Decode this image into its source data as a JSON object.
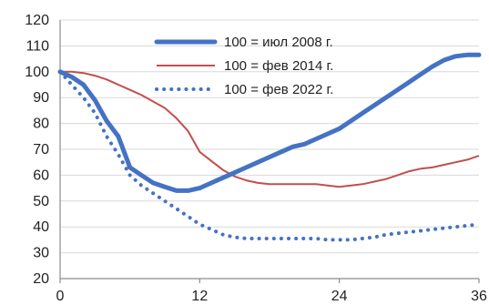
{
  "chart_data": {
    "type": "line",
    "title": "",
    "xlabel": "",
    "ylabel": "",
    "xlim": [
      0,
      36
    ],
    "ylim": [
      20,
      120
    ],
    "x_ticks": [
      0,
      12,
      24,
      36
    ],
    "y_ticks": [
      20,
      30,
      40,
      50,
      60,
      70,
      80,
      90,
      100,
      110,
      120
    ],
    "grid": "horizontal",
    "legend_position": "top-center",
    "series": [
      {
        "name": "100 = июл 2008 г.",
        "color": "#4472c4",
        "style": "solid-thick",
        "x": [
          0,
          1,
          2,
          3,
          4,
          5,
          6,
          7,
          8,
          9,
          10,
          11,
          12,
          13,
          14,
          15,
          16,
          17,
          18,
          19,
          20,
          21,
          22,
          23,
          24,
          25,
          26,
          27,
          28,
          29,
          30,
          31,
          32,
          33,
          34,
          35,
          36
        ],
        "values": [
          100,
          98,
          95,
          89,
          81,
          75,
          63,
          60,
          57,
          55.5,
          54,
          54,
          55,
          57,
          59,
          61,
          63,
          65,
          67,
          69,
          71,
          72,
          74,
          76,
          78,
          81,
          84,
          87,
          90,
          93,
          96,
          99,
          102,
          104.5,
          106,
          106.5,
          106.5
        ]
      },
      {
        "name": "100 = фев 2014 г.",
        "color": "#c0504d",
        "style": "solid-thin",
        "x": [
          0,
          1,
          2,
          3,
          4,
          5,
          6,
          7,
          8,
          9,
          10,
          11,
          12,
          13,
          14,
          15,
          16,
          17,
          18,
          19,
          20,
          21,
          22,
          23,
          24,
          25,
          26,
          27,
          28,
          29,
          30,
          31,
          32,
          33,
          34,
          35,
          36
        ],
        "values": [
          100,
          100,
          99.5,
          98.5,
          97,
          95,
          93,
          91,
          88.5,
          86,
          82,
          77,
          69,
          65.5,
          62,
          59.5,
          58,
          57,
          56.5,
          56.5,
          56.5,
          56.5,
          56.5,
          56,
          55.5,
          56,
          56.5,
          57.5,
          58.5,
          60,
          61.5,
          62.5,
          63,
          64,
          65,
          66,
          67.5
        ]
      },
      {
        "name": "100 = фев 2022 г.",
        "color": "#4472c4",
        "style": "dotted",
        "x": [
          0,
          1,
          2,
          3,
          4,
          5,
          6,
          7,
          8,
          9,
          10,
          11,
          12,
          13,
          14,
          15,
          16,
          17,
          18,
          19,
          20,
          21,
          22,
          23,
          24,
          25,
          26,
          27,
          28,
          29,
          30,
          31,
          32,
          33,
          34,
          35,
          36
        ],
        "values": [
          100,
          95,
          90,
          84,
          75,
          68,
          60,
          56,
          53,
          50,
          47,
          44,
          41,
          39,
          37,
          36,
          35.5,
          35.5,
          35.5,
          35.5,
          35.5,
          35.5,
          35.5,
          35,
          35,
          35,
          35.5,
          36,
          37,
          37.5,
          38,
          38.5,
          39,
          39.5,
          40,
          40.5,
          41
        ]
      }
    ]
  }
}
